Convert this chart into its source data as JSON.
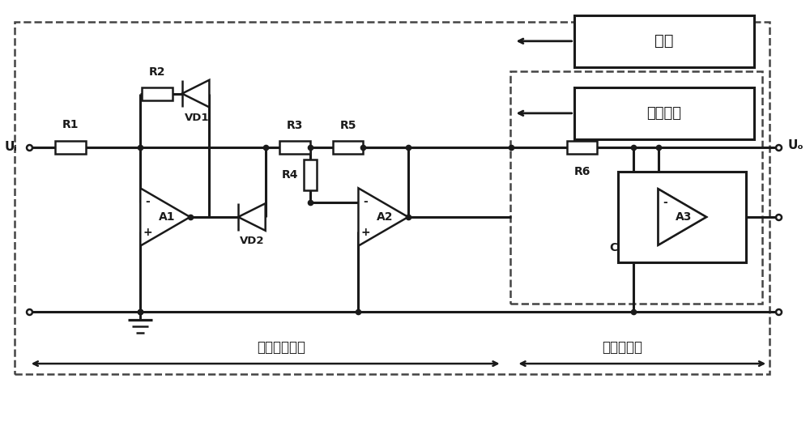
{
  "bg_color": "#ffffff",
  "line_color": "#1a1a1a",
  "fig_width": 10.0,
  "fig_height": 5.36,
  "labels": {
    "R1": "R1",
    "R2": "R2",
    "R3": "R3",
    "R4": "R4",
    "R5": "R5",
    "R6": "R6",
    "VD1": "VD1",
    "VD2": "VD2",
    "A1": "A1",
    "A2": "A2",
    "A3": "A3",
    "C": "C",
    "Ui": "Uᵢ",
    "Uo": "Uₒ",
    "full_wave": "全波整流电路",
    "low_pass": "低通滤波器",
    "power": "电源",
    "peripheral": "外围电路"
  }
}
